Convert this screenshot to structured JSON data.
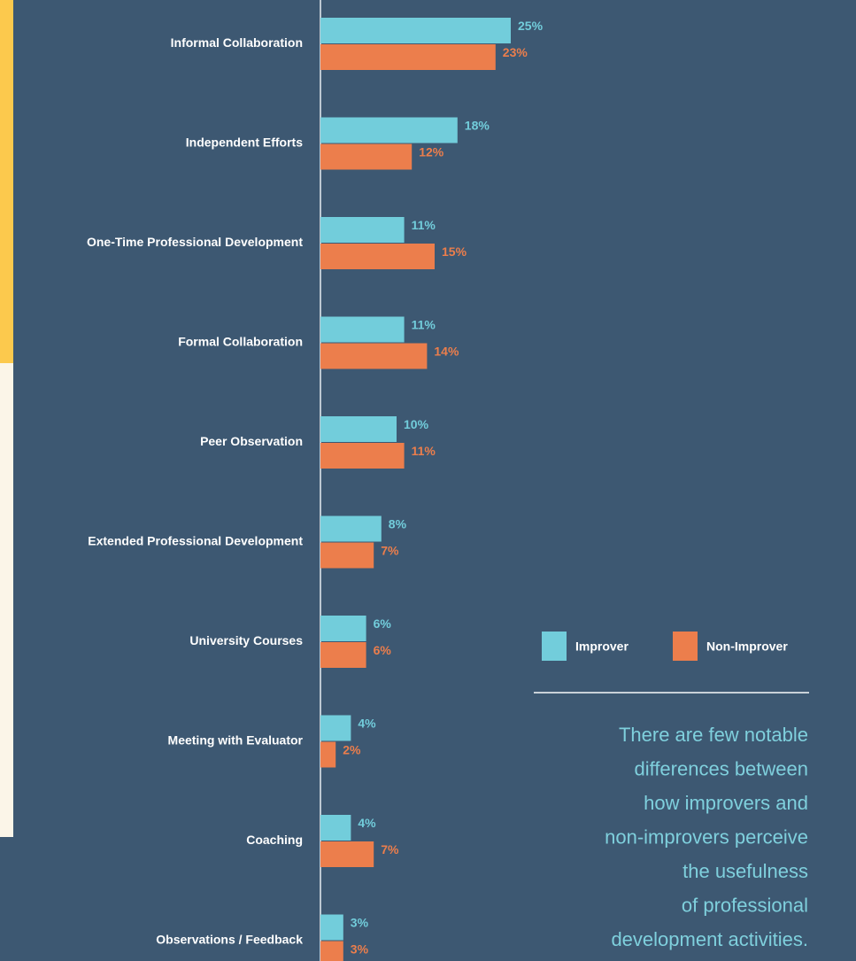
{
  "chart_data": {
    "type": "bar",
    "orientation": "horizontal",
    "categories": [
      "Informal Collaboration",
      "Independent Efforts",
      "One-Time Professional Development",
      "Formal Collaboration",
      "Peer Observation",
      "Extended Professional Development",
      "University Courses",
      "Meeting with Evaluator",
      "Coaching",
      "Observations / Feedback"
    ],
    "series": [
      {
        "name": "Improver",
        "color": "#72cddb",
        "values": [
          25,
          18,
          11,
          11,
          10,
          8,
          6,
          4,
          4,
          3
        ],
        "value_labels": [
          "25%",
          "18%",
          "11%",
          "11%",
          "10%",
          "8%",
          "6%",
          "4%",
          "4%",
          "3%"
        ]
      },
      {
        "name": "Non-Improver",
        "color": "#ec7e4c",
        "values": [
          23,
          12,
          15,
          14,
          11,
          7,
          6,
          2,
          7,
          3
        ],
        "value_labels": [
          "23%",
          "12%",
          "15%",
          "14%",
          "11%",
          "7%",
          "6%",
          "2%",
          "7%",
          "3%"
        ]
      }
    ],
    "annotation": [
      "There are few notable",
      "differences between",
      "how improvers and",
      "non-improvers perceive",
      "the usefulness",
      "of professional",
      "development activities."
    ]
  }
}
